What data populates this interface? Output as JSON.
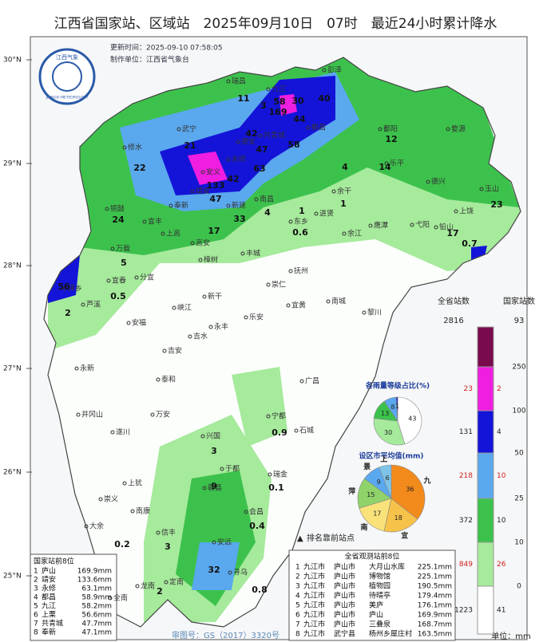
{
  "header": {
    "title": "江西省国家站、区域站　2025年09月10日　07时　最近24小时累计降水",
    "update_time": "更新时间：2025-09-10 07:58:05",
    "producer": "制作单位：江西省气象台",
    "logo_text": "江西气象",
    "logo_subtext": "JIANGXI METEOROLOGY"
  },
  "map": {
    "lat_labels": [
      "30°N",
      "29°N",
      "28°N",
      "27°N",
      "26°N",
      "25°N"
    ],
    "places": [
      "彭泽",
      "瑞昌",
      "九江",
      "德安",
      "共青城",
      "都昌",
      "武宁",
      "修水",
      "永修",
      "安义",
      "靖安",
      "奉新",
      "铜鼓",
      "宜丰",
      "新建",
      "南昌",
      "进贤",
      "余干",
      "鄱阳",
      "乐平",
      "婺源",
      "德兴",
      "玉山",
      "上饶",
      "弋阳",
      "铅山",
      "鹰潭",
      "余江",
      "东乡",
      "上高",
      "高安",
      "万载",
      "宜春",
      "分宜",
      "萍乡",
      "芦溪",
      "樟树",
      "丰城",
      "抚州",
      "崇仁",
      "新干",
      "峡江",
      "乐安",
      "宜黄",
      "南城",
      "黎川",
      "永丰",
      "安福",
      "吉水",
      "吉安",
      "泰和",
      "永新",
      "井冈山",
      "遂川",
      "万安",
      "兴国",
      "宁都",
      "石城",
      "广昌",
      "于都",
      "瑞金",
      "赣县",
      "上犹",
      "崇义",
      "南康",
      "大余",
      "信丰",
      "会昌",
      "安远",
      "寻乌",
      "龙南",
      "定南",
      "全南"
    ],
    "rain_values": [
      11,
      58,
      30,
      40,
      169,
      3,
      44,
      42,
      47,
      58,
      21,
      22,
      63,
      42,
      133,
      47,
      33,
      24,
      4,
      1,
      12,
      4,
      14,
      17,
      5,
      0.5,
      56,
      2,
      23,
      17,
      0.7,
      1,
      0.6,
      0.9,
      3,
      9,
      0.1,
      0.4,
      32,
      0.8,
      0.2,
      3,
      2
    ],
    "approval": "审图号：GS（2017）3320号",
    "marker_note": "排名靠前站点"
  },
  "legend": {
    "province_header": "全省站数",
    "national_header": "国家站数",
    "province_total": 2816,
    "national_total": 93,
    "thresholds": [
      250,
      100,
      50,
      25,
      10,
      0
    ],
    "colors": [
      "#7a0a4e",
      "#f01ee0",
      "#1414d8",
      "#5aa8ee",
      "#3cc24c",
      "#a6ea9c",
      "#ffffff"
    ],
    "province_counts": [
      23,
      131,
      218,
      372,
      849,
      1223
    ],
    "national_counts": [
      2,
      4,
      10,
      10,
      26,
      41
    ],
    "unit": "单位：mm"
  },
  "pies": [
    {
      "title": "各雨量等级占比(%)",
      "values": [
        43,
        30,
        13,
        8,
        1
      ],
      "colors": [
        "#ffffff",
        "#a6ea9c",
        "#3cc24c",
        "#5aa8ee",
        "#1414d8"
      ]
    },
    {
      "title": "设区市平均值(mm)",
      "labels": [
        "九",
        "宜",
        "南",
        "萍",
        "景",
        "上"
      ],
      "values": [
        36,
        18,
        17,
        15,
        9,
        6
      ],
      "colors": [
        "#f28a1c",
        "#f7c24a",
        "#f9e27a",
        "#8fd36a",
        "#5aa8ee",
        "#7ec4e8"
      ]
    }
  ],
  "rankings": {
    "national": {
      "title": "国家站前8位",
      "rows": [
        [
          "1",
          "庐山",
          "169.9mm"
        ],
        [
          "2",
          "靖安",
          "133.6mm"
        ],
        [
          "3",
          "永修",
          "63.1mm"
        ],
        [
          "4",
          "都昌",
          "58.9mm"
        ],
        [
          "5",
          "九江",
          "58.2mm"
        ],
        [
          "6",
          "上栗",
          "56.6mm"
        ],
        [
          "7",
          "共青城",
          "47.7mm"
        ],
        [
          "8",
          "奉新",
          "47.1mm"
        ]
      ]
    },
    "all": {
      "title": "全省观测站前8位",
      "rows": [
        [
          "1",
          "九江市",
          "庐山市",
          "大月山水库",
          "225.1mm"
        ],
        [
          "2",
          "九江市",
          "庐山市",
          "博物馆",
          "225.1mm"
        ],
        [
          "3",
          "九江市",
          "庐山市",
          "植物园",
          "190.5mm"
        ],
        [
          "4",
          "九江市",
          "庐山市",
          "待晴亭",
          "179.4mm"
        ],
        [
          "5",
          "九江市",
          "庐山市",
          "美庐",
          "176.1mm"
        ],
        [
          "6",
          "九江市",
          "庐山市",
          "庐山",
          "169.9mm"
        ],
        [
          "7",
          "九江市",
          "庐山市",
          "三叠泉",
          "168.7mm"
        ],
        [
          "8",
          "九江市",
          "武宁县",
          "杨州乡屋庄村",
          "163.5mm"
        ]
      ]
    }
  }
}
